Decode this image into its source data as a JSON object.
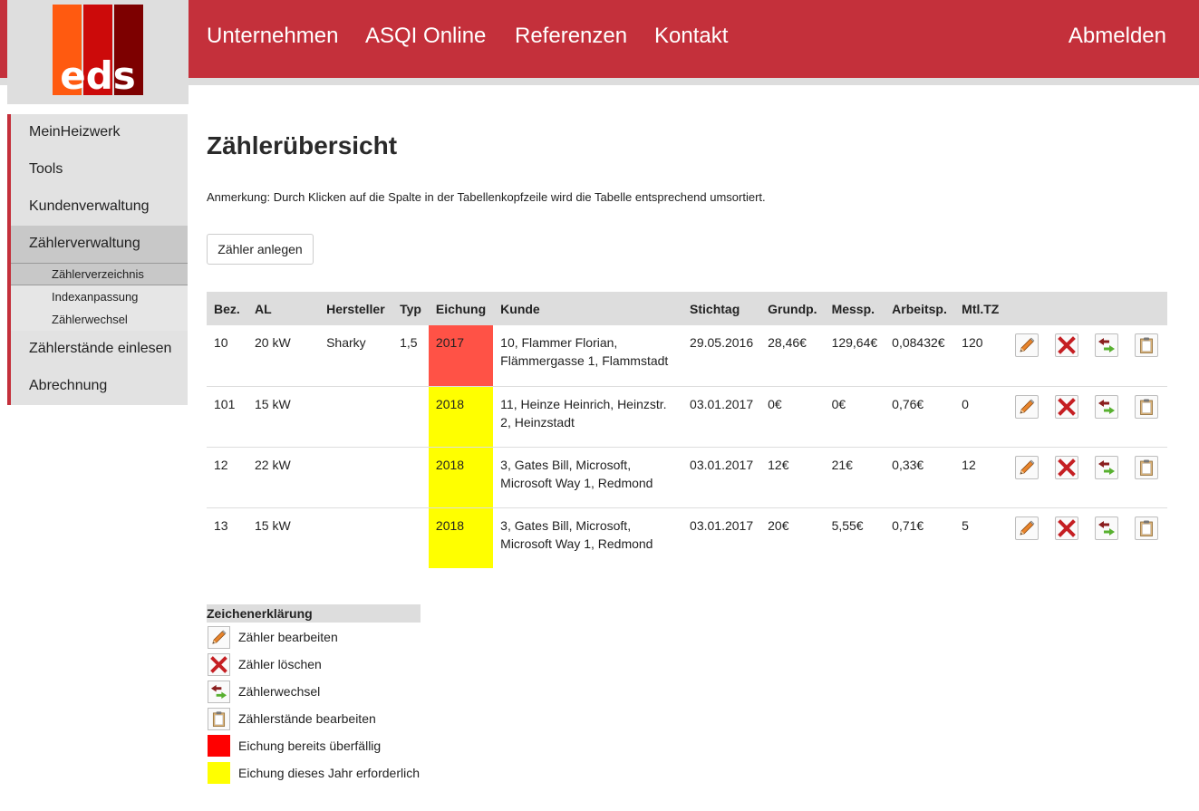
{
  "header": {
    "logo_text": "eds",
    "nav": [
      {
        "label": "Unternehmen"
      },
      {
        "label": "ASQI Online"
      },
      {
        "label": "Referenzen"
      },
      {
        "label": "Kontakt"
      }
    ],
    "logout_label": "Abmelden"
  },
  "sidebar": {
    "items": [
      {
        "label": "MeinHeizwerk"
      },
      {
        "label": "Tools"
      },
      {
        "label": "Kundenverwaltung"
      },
      {
        "label": "Zählerverwaltung"
      },
      {
        "label": "Zählerstände einlesen"
      },
      {
        "label": "Abrechnung"
      }
    ],
    "sub_items": [
      {
        "label": "Zählerverzeichnis"
      },
      {
        "label": "Indexanpassung"
      },
      {
        "label": "Zählerwechsel"
      }
    ]
  },
  "main": {
    "title": "Zählerübersicht",
    "note": "Anmerkung: Durch Klicken auf die Spalte in der Tabellenkopfzeile wird die Tabelle entsprechend umsortiert.",
    "create_button": "Zähler anlegen",
    "table": {
      "columns": [
        "Bez.",
        "AL",
        "Hersteller",
        "Typ",
        "Eichung",
        "Kunde",
        "Stichtag",
        "Grundp.",
        "Messp.",
        "Arbeitsp.",
        "Mtl.TZ"
      ],
      "rows": [
        {
          "bez": "10",
          "al": "20 kW",
          "hersteller": "Sharky",
          "typ": "1,5",
          "eichung": "2017",
          "eichung_status": "overdue",
          "kunde": "10, Flammer Florian, Flämmergasse 1, Flammstadt",
          "stichtag": "29.05.2016",
          "grundp": "28,46€",
          "messp": "129,64€",
          "arbeitsp": "0,08432€",
          "mtltz": "120"
        },
        {
          "bez": "101",
          "al": "15 kW",
          "hersteller": "",
          "typ": "",
          "eichung": "2018",
          "eichung_status": "due",
          "kunde": "11, Heinze Heinrich, Heinzstr. 2, Heinzstadt",
          "stichtag": "03.01.2017",
          "grundp": "0€",
          "messp": "0€",
          "arbeitsp": "0,76€",
          "mtltz": "0"
        },
        {
          "bez": "12",
          "al": "22 kW",
          "hersteller": "",
          "typ": "",
          "eichung": "2018",
          "eichung_status": "due",
          "kunde": "3, Gates Bill, Microsoft, Microsoft Way 1, Redmond",
          "stichtag": "03.01.2017",
          "grundp": "12€",
          "messp": "21€",
          "arbeitsp": "0,33€",
          "mtltz": "12"
        },
        {
          "bez": "13",
          "al": "15 kW",
          "hersteller": "",
          "typ": "",
          "eichung": "2018",
          "eichung_status": "due",
          "kunde": "3, Gates Bill, Microsoft, Microsoft Way 1, Redmond",
          "stichtag": "03.01.2017",
          "grundp": "20€",
          "messp": "5,55€",
          "arbeitsp": "0,71€",
          "mtltz": "5"
        }
      ],
      "row_actions": [
        "pencil-icon",
        "delete-x-icon",
        "swap-arrows-icon",
        "clipboard-icon"
      ]
    }
  },
  "legend": {
    "title": "Zeichenerklärung",
    "items": [
      {
        "icon": "pencil-icon",
        "label": "Zähler bearbeiten"
      },
      {
        "icon": "delete-x-icon",
        "label": "Zähler löschen"
      },
      {
        "icon": "swap-arrows-icon",
        "label": "Zählerwechsel"
      },
      {
        "icon": "clipboard-icon",
        "label": "Zählerstände bearbeiten"
      },
      {
        "swatch": "#ff0000",
        "label": "Eichung bereits überfällig"
      },
      {
        "swatch": "#ffff00",
        "label": "Eichung dieses Jahr erforderlich"
      }
    ]
  },
  "colors": {
    "brand_red": "#c4303b",
    "overdue_cell": "#ff5246",
    "due_cell": "#ffff00"
  }
}
